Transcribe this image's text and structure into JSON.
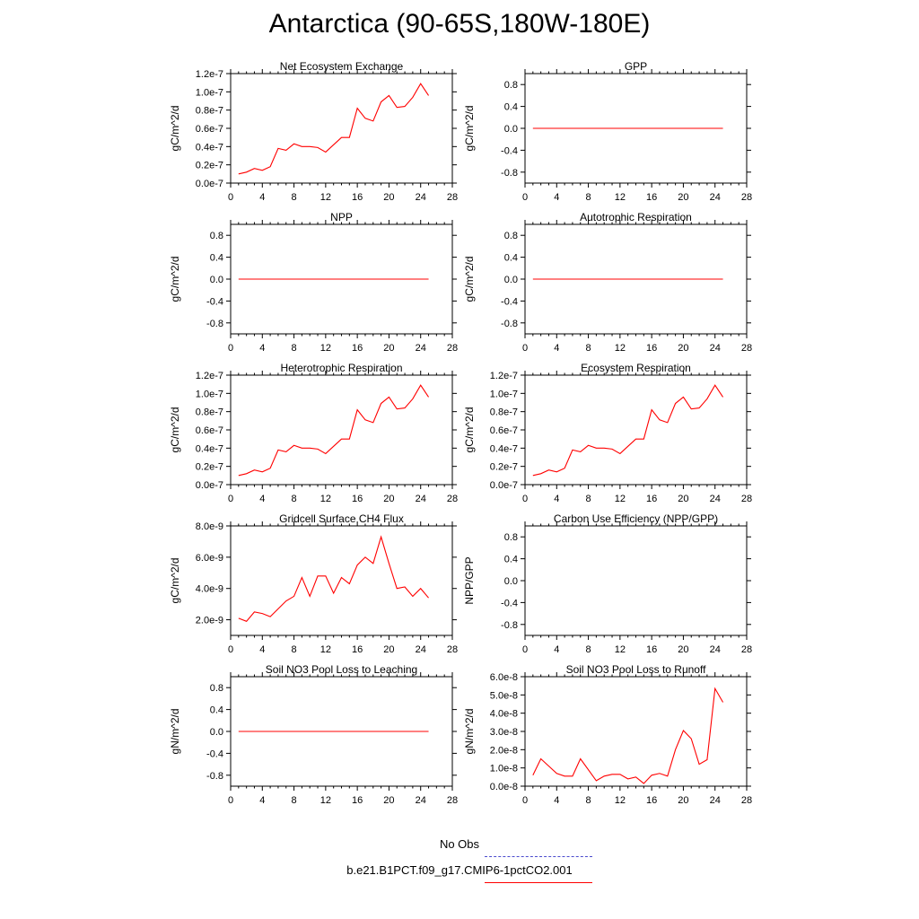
{
  "title": "Antarctica (90-65S,180W-180E)",
  "legend": {
    "obs_label": "No Obs",
    "obs_color": "#4a4acd",
    "model_label": "b.e21.B1PCT.f09_g17.CMIP6-1pctCO2.001",
    "model_color": "#ff0000"
  },
  "chart_data": [
    {
      "type": "line",
      "title": "Net Ecosystem Exchange",
      "ylabel": "gC/m^2/d",
      "xlim": [
        0,
        28
      ],
      "ylim": [
        0,
        1.2e-07
      ],
      "xticks": [
        0,
        4,
        8,
        12,
        16,
        20,
        24,
        28
      ],
      "yticks": [
        0,
        2e-08,
        4e-08,
        6e-08,
        8e-08,
        1e-07,
        1.2e-07
      ],
      "ytick_labels": [
        "0.0e-7",
        "0.2e-7",
        "0.4e-7",
        "0.6e-7",
        "0.8e-7",
        "1.0e-7",
        "1.2e-7"
      ],
      "x": [
        1,
        2,
        3,
        4,
        5,
        6,
        7,
        8,
        9,
        10,
        11,
        12,
        13,
        14,
        15,
        16,
        17,
        18,
        19,
        20,
        21,
        22,
        23,
        24,
        25
      ],
      "series": [
        {
          "values": [
            1e-08,
            1.2e-08,
            1.6e-08,
            1.4e-08,
            1.8e-08,
            3.8e-08,
            3.6e-08,
            4.3e-08,
            4e-08,
            4e-08,
            3.9e-08,
            3.4e-08,
            4.2e-08,
            5e-08,
            5e-08,
            8.2e-08,
            7.1e-08,
            6.8e-08,
            8.9e-08,
            9.6e-08,
            8.3e-08,
            8.4e-08,
            9.4e-08,
            1.09e-07,
            9.6e-08
          ]
        }
      ]
    },
    {
      "type": "line",
      "title": "GPP",
      "ylabel": "gC/m^2/d",
      "xlim": [
        0,
        28
      ],
      "ylim": [
        -1,
        1
      ],
      "xticks": [
        0,
        4,
        8,
        12,
        16,
        20,
        24,
        28
      ],
      "yticks": [
        -0.8,
        -0.4,
        0,
        0.4,
        0.8
      ],
      "ytick_labels": [
        "-0.8",
        "-0.4",
        "0.0",
        "0.4",
        "0.8"
      ],
      "x": [
        1,
        25
      ],
      "series": [
        {
          "values": [
            0,
            0
          ]
        }
      ]
    },
    {
      "type": "line",
      "title": "NPP",
      "ylabel": "gC/m^2/d",
      "xlim": [
        0,
        28
      ],
      "ylim": [
        -1,
        1
      ],
      "xticks": [
        0,
        4,
        8,
        12,
        16,
        20,
        24,
        28
      ],
      "yticks": [
        -0.8,
        -0.4,
        0,
        0.4,
        0.8
      ],
      "ytick_labels": [
        "-0.8",
        "-0.4",
        "0.0",
        "0.4",
        "0.8"
      ],
      "x": [
        1,
        25
      ],
      "series": [
        {
          "values": [
            0,
            0
          ]
        }
      ]
    },
    {
      "type": "line",
      "title": "Autotrophic Respiration",
      "ylabel": "gC/m^2/d",
      "xlim": [
        0,
        28
      ],
      "ylim": [
        -1,
        1
      ],
      "xticks": [
        0,
        4,
        8,
        12,
        16,
        20,
        24,
        28
      ],
      "yticks": [
        -0.8,
        -0.4,
        0,
        0.4,
        0.8
      ],
      "ytick_labels": [
        "-0.8",
        "-0.4",
        "0.0",
        "0.4",
        "0.8"
      ],
      "x": [
        1,
        25
      ],
      "series": [
        {
          "values": [
            0,
            0
          ]
        }
      ]
    },
    {
      "type": "line",
      "title": "Heterotrophic Respiration",
      "ylabel": "gC/m^2/d",
      "xlim": [
        0,
        28
      ],
      "ylim": [
        0,
        1.2e-07
      ],
      "xticks": [
        0,
        4,
        8,
        12,
        16,
        20,
        24,
        28
      ],
      "yticks": [
        0,
        2e-08,
        4e-08,
        6e-08,
        8e-08,
        1e-07,
        1.2e-07
      ],
      "ytick_labels": [
        "0.0e-7",
        "0.2e-7",
        "0.4e-7",
        "0.6e-7",
        "0.8e-7",
        "1.0e-7",
        "1.2e-7"
      ],
      "x": [
        1,
        2,
        3,
        4,
        5,
        6,
        7,
        8,
        9,
        10,
        11,
        12,
        13,
        14,
        15,
        16,
        17,
        18,
        19,
        20,
        21,
        22,
        23,
        24,
        25
      ],
      "series": [
        {
          "values": [
            1e-08,
            1.2e-08,
            1.6e-08,
            1.4e-08,
            1.8e-08,
            3.8e-08,
            3.6e-08,
            4.3e-08,
            4e-08,
            4e-08,
            3.9e-08,
            3.4e-08,
            4.2e-08,
            5e-08,
            5e-08,
            8.2e-08,
            7.1e-08,
            6.8e-08,
            8.9e-08,
            9.6e-08,
            8.3e-08,
            8.4e-08,
            9.4e-08,
            1.09e-07,
            9.6e-08
          ]
        }
      ]
    },
    {
      "type": "line",
      "title": "Ecosystem Respiration",
      "ylabel": "gC/m^2/d",
      "xlim": [
        0,
        28
      ],
      "ylim": [
        0,
        1.2e-07
      ],
      "xticks": [
        0,
        4,
        8,
        12,
        16,
        20,
        24,
        28
      ],
      "yticks": [
        0,
        2e-08,
        4e-08,
        6e-08,
        8e-08,
        1e-07,
        1.2e-07
      ],
      "ytick_labels": [
        "0.0e-7",
        "0.2e-7",
        "0.4e-7",
        "0.6e-7",
        "0.8e-7",
        "1.0e-7",
        "1.2e-7"
      ],
      "x": [
        1,
        2,
        3,
        4,
        5,
        6,
        7,
        8,
        9,
        10,
        11,
        12,
        13,
        14,
        15,
        16,
        17,
        18,
        19,
        20,
        21,
        22,
        23,
        24,
        25
      ],
      "series": [
        {
          "values": [
            1e-08,
            1.2e-08,
            1.6e-08,
            1.4e-08,
            1.8e-08,
            3.8e-08,
            3.6e-08,
            4.3e-08,
            4e-08,
            4e-08,
            3.9e-08,
            3.4e-08,
            4.2e-08,
            5e-08,
            5e-08,
            8.2e-08,
            7.1e-08,
            6.8e-08,
            8.9e-08,
            9.6e-08,
            8.3e-08,
            8.4e-08,
            9.4e-08,
            1.09e-07,
            9.6e-08
          ]
        }
      ]
    },
    {
      "type": "line",
      "title": "Gridcell Surface CH4 Flux",
      "ylabel": "gC/m^2/d",
      "xlim": [
        0,
        28
      ],
      "ylim": [
        1e-09,
        8e-09
      ],
      "xticks": [
        0,
        4,
        8,
        12,
        16,
        20,
        24,
        28
      ],
      "yticks": [
        2e-09,
        4e-09,
        6e-09,
        8e-09
      ],
      "ytick_labels": [
        "2.0e-9",
        "4.0e-9",
        "6.0e-9",
        "8.0e-9"
      ],
      "x": [
        1,
        2,
        3,
        4,
        5,
        6,
        7,
        8,
        9,
        10,
        11,
        12,
        13,
        14,
        15,
        16,
        17,
        18,
        19,
        20,
        21,
        22,
        23,
        24,
        25
      ],
      "series": [
        {
          "values": [
            2.1e-09,
            1.9e-09,
            2.5e-09,
            2.4e-09,
            2.2e-09,
            2.7e-09,
            3.2e-09,
            3.5e-09,
            4.7e-09,
            3.5e-09,
            4.8e-09,
            4.8e-09,
            3.7e-09,
            4.7e-09,
            4.3e-09,
            5.5e-09,
            6e-09,
            5.6e-09,
            7.3e-09,
            5.6e-09,
            4e-09,
            4.1e-09,
            3.5e-09,
            4e-09,
            3.4e-09
          ]
        }
      ]
    },
    {
      "type": "line",
      "title": "Carbon Use Efficiency (NPP/GPP)",
      "ylabel": "NPP/GPP",
      "xlim": [
        0,
        28
      ],
      "ylim": [
        -1,
        1
      ],
      "xticks": [
        0,
        4,
        8,
        12,
        16,
        20,
        24,
        28
      ],
      "yticks": [
        -0.8,
        -0.4,
        0,
        0.4,
        0.8
      ],
      "ytick_labels": [
        "-0.8",
        "-0.4",
        "0.0",
        "0.4",
        "0.8"
      ],
      "x": [],
      "series": []
    },
    {
      "type": "line",
      "title": "Soil NO3 Pool Loss to Leaching",
      "ylabel": "gN/m^2/d",
      "xlim": [
        0,
        28
      ],
      "ylim": [
        -1,
        1
      ],
      "xticks": [
        0,
        4,
        8,
        12,
        16,
        20,
        24,
        28
      ],
      "yticks": [
        -0.8,
        -0.4,
        0,
        0.4,
        0.8
      ],
      "ytick_labels": [
        "-0.8",
        "-0.4",
        "0.0",
        "0.4",
        "0.8"
      ],
      "x": [
        1,
        25
      ],
      "series": [
        {
          "values": [
            0,
            0
          ]
        }
      ]
    },
    {
      "type": "line",
      "title": "Soil NO3 Pool Loss to Runoff",
      "ylabel": "gN/m^2/d",
      "xlim": [
        0,
        28
      ],
      "ylim": [
        0,
        6e-08
      ],
      "xticks": [
        0,
        4,
        8,
        12,
        16,
        20,
        24,
        28
      ],
      "yticks": [
        0,
        1e-08,
        2e-08,
        3e-08,
        4e-08,
        5e-08,
        6e-08
      ],
      "ytick_labels": [
        "0.0e-8",
        "1.0e-8",
        "2.0e-8",
        "3.0e-8",
        "4.0e-8",
        "5.0e-8",
        "6.0e-8"
      ],
      "x": [
        1,
        2,
        3,
        4,
        5,
        6,
        7,
        8,
        9,
        10,
        11,
        12,
        13,
        14,
        15,
        16,
        17,
        18,
        19,
        20,
        21,
        22,
        23,
        24,
        25
      ],
      "series": [
        {
          "values": [
            6e-09,
            1.5e-08,
            1.1e-08,
            7e-09,
            5.5e-09,
            5.5e-09,
            1.5e-08,
            9e-09,
            3e-09,
            5.5e-09,
            6.5e-09,
            6.5e-09,
            4e-09,
            5e-09,
            1.5e-09,
            6e-09,
            7e-09,
            5.5e-09,
            2e-08,
            3.05e-08,
            2.6e-08,
            1.2e-08,
            1.45e-08,
            5.35e-08,
            4.6e-08
          ]
        }
      ]
    }
  ]
}
